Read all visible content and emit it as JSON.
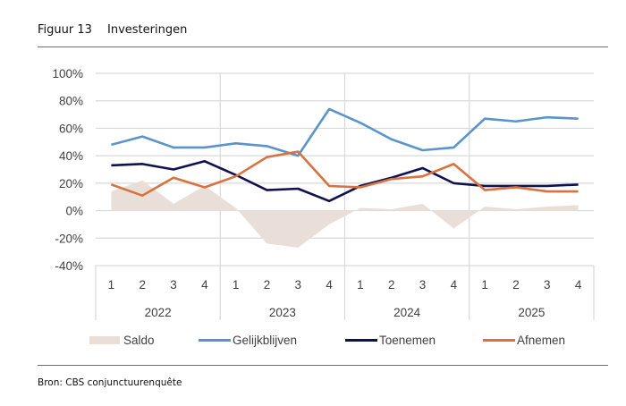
{
  "figure": {
    "number_label": "Figuur 13",
    "title": "Investeringen",
    "source": "Bron: CBS conjunctuurenquête"
  },
  "colors": {
    "saldo": "#eadfd8",
    "gelijkblijven": "#5b93cc",
    "toenemen": "#0f1150",
    "afnemen": "#d9723f",
    "grid": "#d9d9d9",
    "axis_text": "#404040"
  },
  "chart_data": {
    "type": "line",
    "title": "Investeringen",
    "xlabel": "",
    "ylabel": "",
    "ylim": [
      -40,
      100
    ],
    "yticks": [
      100,
      80,
      60,
      40,
      20,
      0,
      -20,
      -40
    ],
    "ytick_labels": [
      "100%",
      "80%",
      "60%",
      "40%",
      "20%",
      "0%",
      "-20%",
      "-40%"
    ],
    "grid": true,
    "legend_position": "bottom",
    "categories": [
      "2022 Q1",
      "2022 Q2",
      "2022 Q3",
      "2022 Q4",
      "2023 Q1",
      "2023 Q2",
      "2023 Q3",
      "2023 Q4",
      "2024 Q1",
      "2024 Q2",
      "2024 Q3",
      "2024 Q4",
      "2025 Q1",
      "2025 Q2",
      "2025 Q3",
      "2025 Q4"
    ],
    "quarter_labels": [
      "1",
      "2",
      "3",
      "4",
      "1",
      "2",
      "3",
      "4",
      "1",
      "2",
      "3",
      "4",
      "1",
      "2",
      "3",
      "4"
    ],
    "year_labels": [
      "2022",
      "2023",
      "2024",
      "2025"
    ],
    "series": [
      {
        "name": "Saldo",
        "type": "area",
        "values": [
          14,
          22,
          5,
          18,
          2,
          -24,
          -27,
          -10,
          2,
          1,
          5,
          -13,
          3,
          1,
          3,
          4
        ]
      },
      {
        "name": "Gelijkblijven",
        "type": "line",
        "values": [
          48,
          54,
          46,
          46,
          49,
          47,
          40,
          74,
          64,
          52,
          44,
          46,
          67,
          65,
          68,
          67
        ]
      },
      {
        "name": "Toenemen",
        "type": "line",
        "values": [
          33,
          34,
          30,
          36,
          26,
          15,
          16,
          7,
          18,
          24,
          31,
          20,
          18,
          18,
          18,
          19
        ]
      },
      {
        "name": "Afnemen",
        "type": "line",
        "values": [
          19,
          11,
          24,
          17,
          25,
          39,
          43,
          18,
          17,
          23,
          25,
          34,
          15,
          17,
          14,
          14
        ]
      }
    ]
  },
  "legend": {
    "items": [
      "Saldo",
      "Gelijkblijven",
      "Toenemen",
      "Afnemen"
    ]
  }
}
